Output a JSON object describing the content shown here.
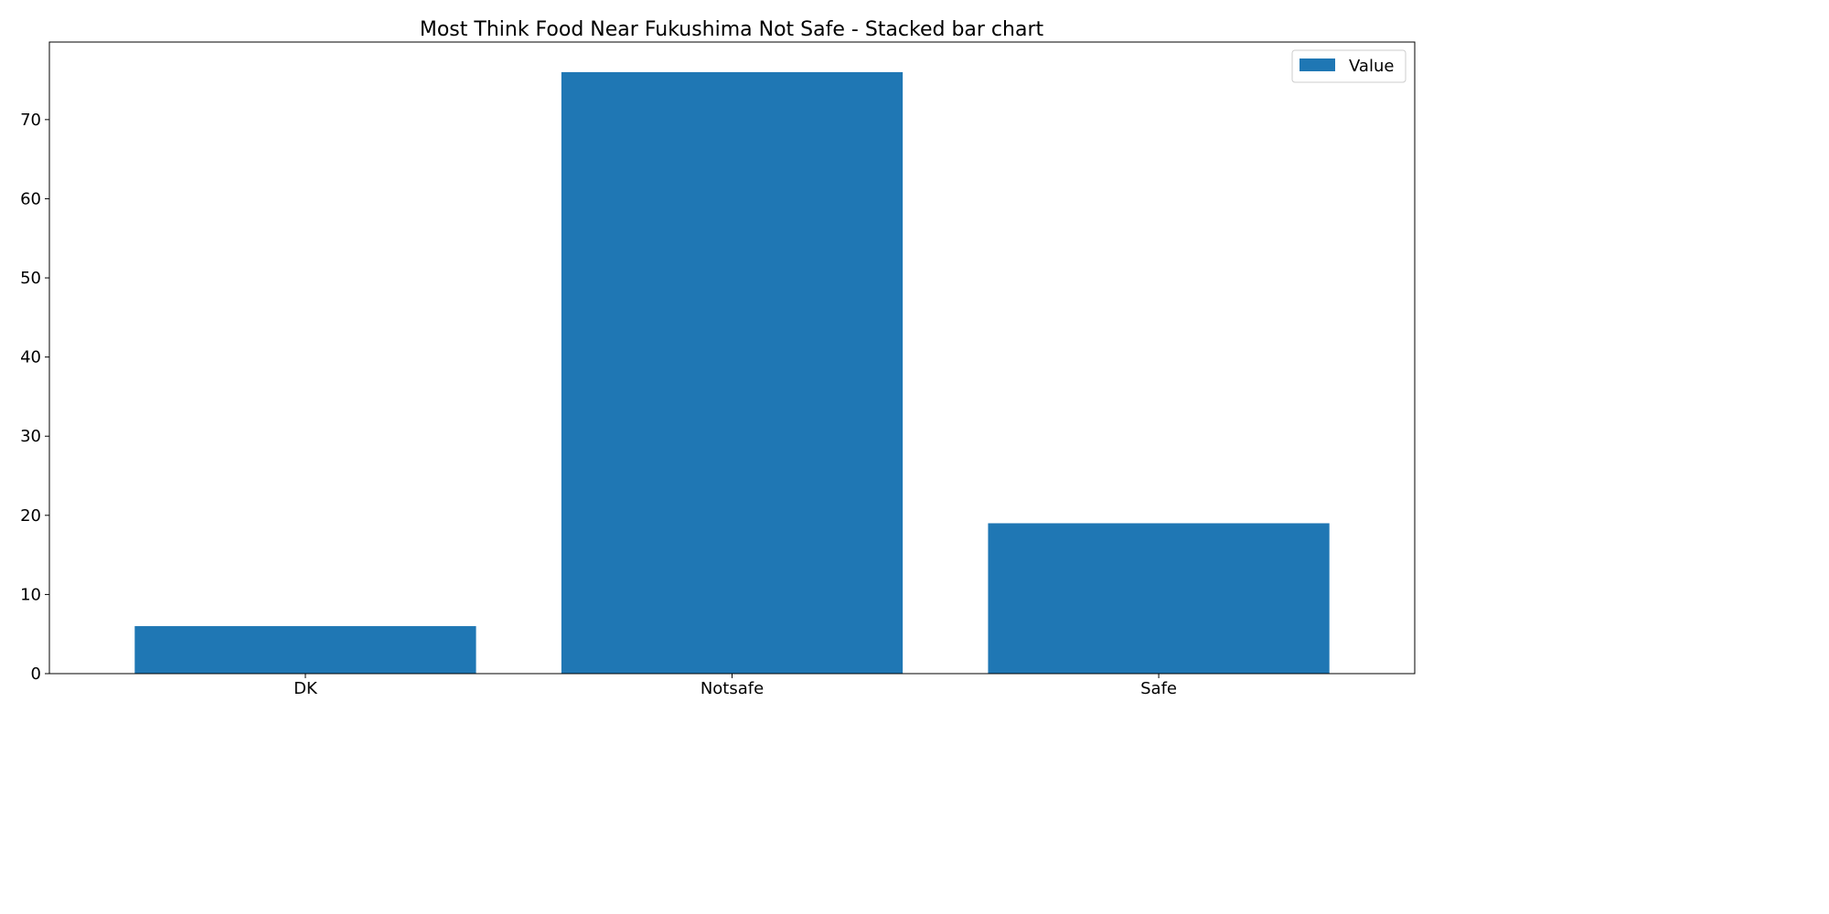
{
  "chart_data": {
    "type": "bar",
    "title": "Most Think Food Near Fukushima Not Safe  - Stacked bar chart",
    "xlabel": "",
    "ylabel": "",
    "categories": [
      "DK",
      "Notsafe",
      "Safe"
    ],
    "series": [
      {
        "name": "Value",
        "values": [
          6,
          76,
          19
        ],
        "color": "#1f77b4"
      }
    ],
    "ylim": [
      0,
      80
    ],
    "yticks": [
      0,
      10,
      20,
      30,
      40,
      50,
      60,
      70
    ],
    "grid": false,
    "legend": "top-right"
  }
}
